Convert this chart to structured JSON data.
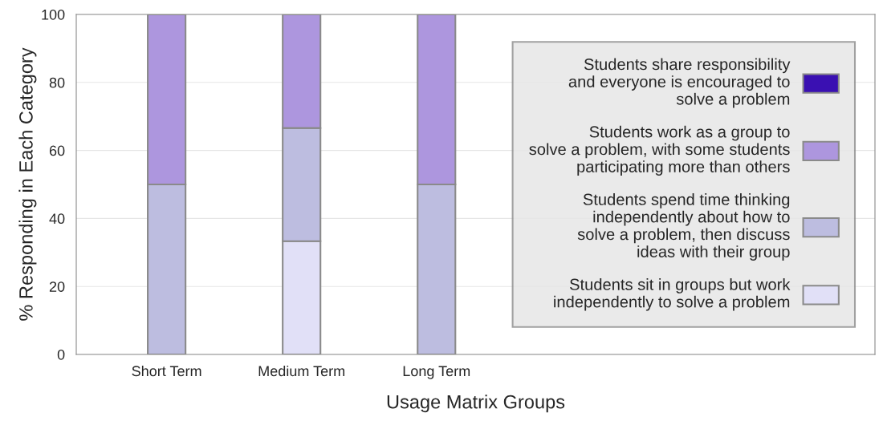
{
  "chart_data": {
    "type": "bar",
    "stacked": true,
    "xlabel": "Usage Matrix Groups",
    "ylabel": "% Responding in Each Category",
    "categories": [
      "Short Term",
      "Medium Term",
      "Long Term"
    ],
    "series": [
      {
        "name": "Students sit in groups but work\nindependently to solve a problem",
        "color": "#e1e0f7",
        "values": [
          0,
          33.3,
          0
        ]
      },
      {
        "name": "Students spend time thinking\nindependently about how to\nsolve a problem, then discuss\nideas with their group",
        "color": "#bdbde0",
        "values": [
          50,
          33.3,
          50
        ]
      },
      {
        "name": "Students work as a group to\nsolve a problem, with some students\nparticipating more than others",
        "color": "#ad96de",
        "values": [
          50,
          33.4,
          50
        ]
      },
      {
        "name": "Students share responsibility\nand everyone is encouraged to\nsolve a problem",
        "color": "#3a10b2",
        "values": [
          0,
          0,
          0
        ]
      }
    ],
    "ylim": [
      0,
      100
    ],
    "yticks": [
      0,
      20,
      40,
      60,
      80,
      100
    ],
    "grid": "y",
    "legend": "right"
  }
}
